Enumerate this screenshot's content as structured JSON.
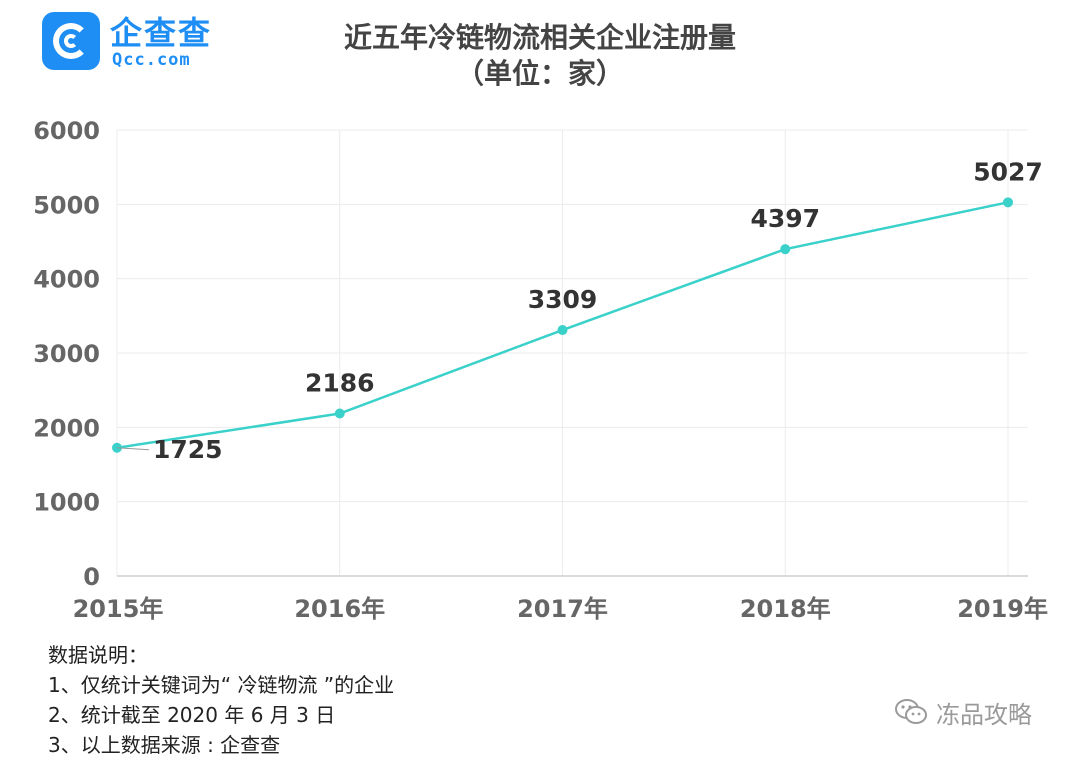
{
  "logo": {
    "cn": "企查查",
    "en": "Qcc.com"
  },
  "title_line1": "近五年冷链物流相关企业注册量",
  "title_line2": "（单位：家）",
  "chart_data": {
    "type": "line",
    "title": "近五年冷链物流相关企业注册量",
    "subtitle": "（单位：家）",
    "categories": [
      "2015年",
      "2016年",
      "2017年",
      "2018年",
      "2019年"
    ],
    "series": [
      {
        "values": [
          1725,
          2186,
          3309,
          4397,
          5027
        ],
        "color": "#3ad1cb"
      }
    ],
    "ylim": [
      0,
      6000
    ],
    "yticks": [
      0,
      1000,
      2000,
      3000,
      4000,
      5000,
      6000
    ],
    "grid": true,
    "xlabel": "",
    "ylabel": ""
  },
  "notes": {
    "heading": "数据说明：",
    "items": [
      "1、仅统计关键词为“ 冷链物流 ”的企业",
      "2、统计截至 2020 年 6 月 3 日",
      "3、以上数据来源 : 企查查"
    ]
  },
  "watermark": {
    "icon": "wechat-icon",
    "text": "冻品攻略"
  }
}
